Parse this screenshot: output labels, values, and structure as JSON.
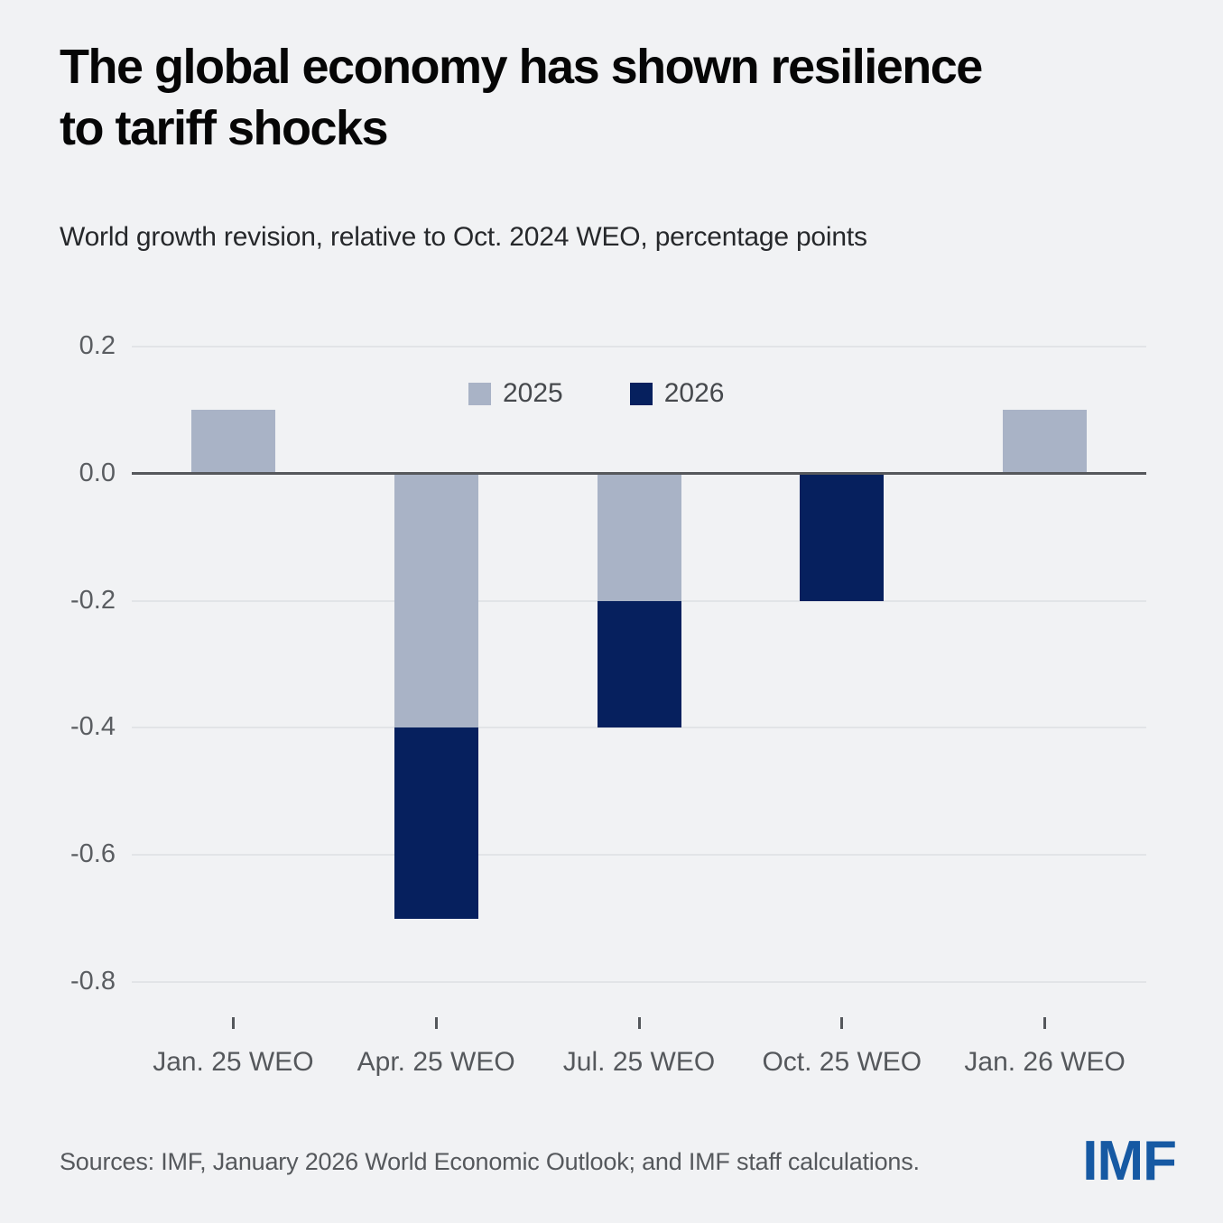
{
  "header": {
    "title": "The global economy has shown resilience\nto tariff shocks",
    "subtitle": "World growth revision, relative to Oct. 2024 WEO, percentage points"
  },
  "chart_data": {
    "type": "bar",
    "stacked": true,
    "title": "The global economy has shown resilience to tariff shocks",
    "subtitle": "World growth revision, relative to Oct. 2024 WEO, percentage points",
    "categories": [
      "Jan. 25 WEO",
      "Apr. 25 WEO",
      "Jul. 25 WEO",
      "Oct. 25 WEO",
      "Jan. 26 WEO"
    ],
    "series": [
      {
        "name": "2025",
        "color": "#A9B3C6",
        "values": [
          0.1,
          -0.4,
          -0.2,
          0,
          0.1
        ]
      },
      {
        "name": "2026",
        "color": "#06205E",
        "values": [
          0,
          -0.3,
          -0.2,
          -0.2,
          0
        ]
      }
    ],
    "ylim": [
      -0.8,
      0.2
    ],
    "yticks": [
      0.2,
      0.0,
      -0.2,
      -0.4,
      -0.6,
      -0.8
    ],
    "ytick_labels": [
      "0.2",
      "0.0",
      "-0.2",
      "-0.4",
      "-0.6",
      "-0.8"
    ],
    "xlabel": "",
    "ylabel": "percentage points",
    "grid": "horizontal",
    "legend_position": "top-center"
  },
  "footer": {
    "source": "Sources: IMF, January 2026 World Economic Outlook; and IMF staff calculations.",
    "logo": "IMF"
  },
  "colors": {
    "background": "#F1F2F4",
    "series_2025": "#A9B3C6",
    "series_2026": "#06205E",
    "zero_line": "#56585C",
    "gridline": "#E2E4E7",
    "axis_text": "#55585C",
    "logo_blue": "#1659A3"
  }
}
